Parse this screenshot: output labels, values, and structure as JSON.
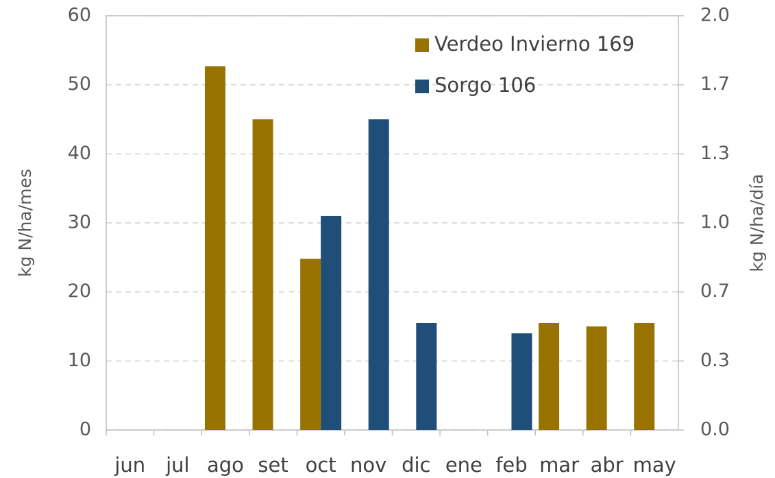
{
  "chart_data": {
    "type": "bar",
    "categories": [
      "jun",
      "jul",
      "ago",
      "set",
      "oct",
      "nov",
      "dic",
      "ene",
      "feb",
      "mar",
      "abr",
      "may"
    ],
    "series": [
      {
        "name": "Verdeo Invierno 169",
        "color": "#997300",
        "values": [
          null,
          null,
          52.7,
          45,
          24.8,
          null,
          null,
          null,
          null,
          15.5,
          15,
          15.5
        ]
      },
      {
        "name": "Sorgo 106",
        "color": "#1f4e79",
        "values": [
          null,
          null,
          null,
          null,
          31,
          45,
          15.5,
          null,
          14,
          null,
          null,
          null
        ]
      }
    ],
    "y_label": "kg N/ha/mes",
    "y2_label": "kg N/ha/día",
    "ylim": [
      0,
      60
    ],
    "yticks": [
      0,
      10,
      20,
      30,
      40,
      50,
      60
    ],
    "y2lim": [
      0,
      2
    ],
    "y2ticks": [
      {
        "value": 0,
        "label": "0.0"
      },
      {
        "value": 0.3333,
        "label": "0.3"
      },
      {
        "value": 0.6667,
        "label": "0.7"
      },
      {
        "value": 1,
        "label": "1.0"
      },
      {
        "value": 1.3333,
        "label": "1.3"
      },
      {
        "value": 1.6667,
        "label": "1.7"
      },
      {
        "value": 2,
        "label": "2.0"
      }
    ],
    "grid": true,
    "legend": "upper right"
  }
}
